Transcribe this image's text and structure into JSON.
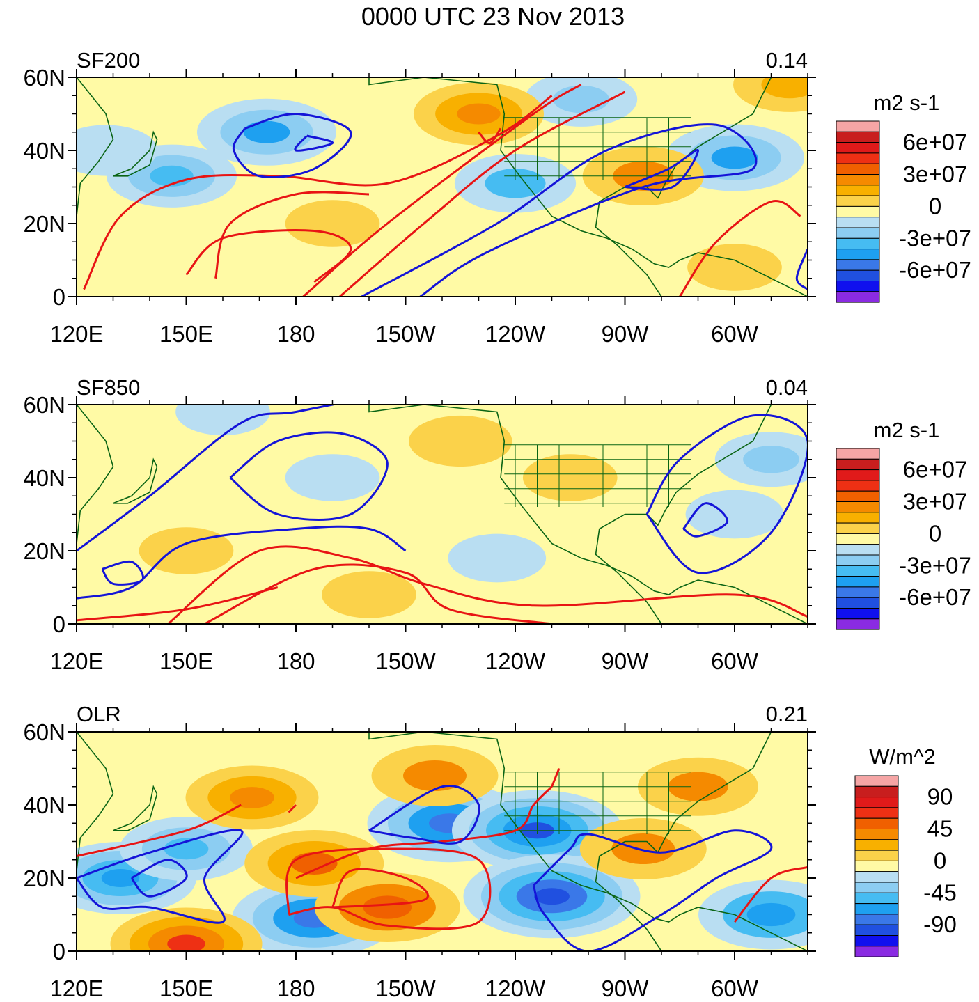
{
  "figure": {
    "title": "0000 UTC 23 Nov 2013"
  },
  "colors": {
    "positive_contour": "#e81414",
    "negative_contour": "#1414d8",
    "coastline": "#0a6414",
    "palette": [
      "#8a2be2",
      "#1010ee",
      "#2050e0",
      "#3a78e8",
      "#1ea0f0",
      "#46bcf2",
      "#8ccdf2",
      "#b9def2",
      "#fffaa5",
      "#fbd24a",
      "#f8b000",
      "#f58a00",
      "#f06000",
      "#ee3014",
      "#e01a1a",
      "#c81e1e",
      "#f5a5a5"
    ]
  },
  "chart_data": [
    {
      "type": "heatmap",
      "title": "SF200",
      "value_label": "0.14",
      "units": "m2 s-1",
      "x_ticks": [
        "120E",
        "150E",
        "180",
        "150W",
        "120W",
        "90W",
        "60W"
      ],
      "y_ticks": [
        "60N",
        "40N",
        "20N",
        "0"
      ],
      "lon_range": [
        120,
        320
      ],
      "lat_range": [
        0,
        60
      ],
      "colorbar_labels": [
        "6e+07",
        "3e+07",
        "0",
        "-3e+07",
        "-6e+07"
      ],
      "colorbar_levels": 16,
      "fields": [
        {
          "lon": 172,
          "lat": 45,
          "value": -35000000.0
        },
        {
          "lon": 146,
          "lat": 33,
          "value": -30000000.0
        },
        {
          "lon": 128,
          "lat": 40,
          "value": -15000000.0
        },
        {
          "lon": 240,
          "lat": 31,
          "value": -25000000.0
        },
        {
          "lon": 258,
          "lat": 54,
          "value": -20000000.0
        },
        {
          "lon": 300,
          "lat": 38,
          "value": -35000000.0
        },
        {
          "lon": 230,
          "lat": 50,
          "value": 30000000.0
        },
        {
          "lon": 275,
          "lat": 33,
          "value": 25000000.0
        },
        {
          "lon": 190,
          "lat": 20,
          "value": 10000000.0
        },
        {
          "lon": 315,
          "lat": 58,
          "value": 20000000.0
        },
        {
          "lon": 300,
          "lat": 8,
          "value": 10000000.0
        }
      ],
      "contours_positive": [
        [
          [
            122,
            2
          ],
          [
            132,
            22
          ],
          [
            150,
            32
          ],
          [
            175,
            33
          ],
          [
            205,
            31
          ],
          [
            235,
            44
          ],
          [
            250,
            55
          ]
        ],
        [
          [
            158,
            5
          ],
          [
            162,
            20
          ],
          [
            180,
            28
          ],
          [
            200,
            28
          ]
        ],
        [
          [
            150,
            6
          ],
          [
            160,
            16
          ],
          [
            185,
            18
          ],
          [
            195,
            13
          ],
          [
            185,
            4
          ]
        ],
        [
          [
            182,
            0
          ],
          [
            205,
            20
          ],
          [
            245,
            50
          ],
          [
            258,
            58
          ]
        ],
        [
          [
            192,
            0
          ],
          [
            215,
            20
          ],
          [
            240,
            40
          ],
          [
            270,
            56
          ]
        ],
        [
          [
            285,
            0
          ],
          [
            295,
            15
          ],
          [
            310,
            26
          ],
          [
            318,
            22
          ]
        ],
        [
          [
            230,
            45
          ],
          [
            233,
            42
          ],
          [
            236,
            46
          ]
        ]
      ],
      "contours_negative": [
        [
          [
            166,
            46
          ],
          [
            180,
            50
          ],
          [
            195,
            45
          ],
          [
            185,
            35
          ],
          [
            170,
            33
          ],
          [
            163,
            40
          ],
          [
            166,
            46
          ]
        ],
        [
          [
            183,
            44
          ],
          [
            190,
            42
          ],
          [
            180,
            40
          ],
          [
            183,
            44
          ]
        ],
        [
          [
            198,
            0
          ],
          [
            235,
            20
          ],
          [
            265,
            40
          ],
          [
            295,
            47
          ],
          [
            305,
            35
          ],
          [
            275,
            30
          ],
          [
            232,
            12
          ],
          [
            214,
            0
          ]
        ],
        [
          [
            270,
            30
          ],
          [
            282,
            35
          ],
          [
            290,
            40
          ],
          [
            283,
            30
          ],
          [
            270,
            30
          ]
        ],
        [
          [
            320,
            13
          ],
          [
            317,
            5
          ],
          [
            320,
            2
          ]
        ]
      ]
    },
    {
      "type": "heatmap",
      "title": "SF850",
      "value_label": "0.04",
      "units": "m2 s-1",
      "x_ticks": [
        "120E",
        "150E",
        "180",
        "150W",
        "120W",
        "90W",
        "60W"
      ],
      "y_ticks": [
        "60N",
        "40N",
        "20N",
        "0"
      ],
      "lon_range": [
        120,
        320
      ],
      "lat_range": [
        0,
        60
      ],
      "colorbar_labels": [
        "6e+07",
        "3e+07",
        "0",
        "-3e+07",
        "-6e+07"
      ],
      "colorbar_levels": 16,
      "fields": [
        {
          "lon": 190,
          "lat": 40,
          "value": -10000000.0
        },
        {
          "lon": 235,
          "lat": 18,
          "value": -12000000.0
        },
        {
          "lon": 300,
          "lat": 30,
          "value": -12000000.0
        },
        {
          "lon": 310,
          "lat": 45,
          "value": -20000000.0
        },
        {
          "lon": 160,
          "lat": 58,
          "value": -10000000.0
        },
        {
          "lon": 150,
          "lat": 20,
          "value": 10000000.0
        },
        {
          "lon": 200,
          "lat": 8,
          "value": 10000000.0
        },
        {
          "lon": 255,
          "lat": 40,
          "value": 10000000.0
        },
        {
          "lon": 225,
          "lat": 50,
          "value": 15000000.0
        }
      ],
      "contours_negative": [
        [
          [
            120,
            20
          ],
          [
            140,
            35
          ],
          [
            165,
            55
          ],
          [
            180,
            58
          ],
          [
            200,
            62
          ]
        ],
        [
          [
            162,
            40
          ],
          [
            175,
            50
          ],
          [
            193,
            52
          ],
          [
            205,
            44
          ],
          [
            195,
            30
          ],
          [
            175,
            30
          ],
          [
            162,
            40
          ]
        ],
        [
          [
            120,
            7
          ],
          [
            135,
            10
          ],
          [
            150,
            22
          ],
          [
            180,
            26
          ],
          [
            200,
            26
          ],
          [
            210,
            20
          ]
        ],
        [
          [
            127,
            15
          ],
          [
            135,
            17
          ],
          [
            138,
            12
          ],
          [
            130,
            11
          ],
          [
            127,
            15
          ]
        ],
        [
          [
            276,
            30
          ],
          [
            285,
            45
          ],
          [
            305,
            57
          ],
          [
            320,
            50
          ],
          [
            310,
            25
          ],
          [
            290,
            14
          ],
          [
            276,
            30
          ]
        ],
        [
          [
            286,
            26
          ],
          [
            292,
            33
          ],
          [
            298,
            28
          ],
          [
            290,
            24
          ],
          [
            286,
            26
          ]
        ]
      ],
      "contours_positive": [
        [
          [
            145,
            0
          ],
          [
            170,
            20
          ],
          [
            195,
            18
          ],
          [
            215,
            11
          ],
          [
            245,
            5
          ],
          [
            300,
            8
          ],
          [
            320,
            2
          ]
        ],
        [
          [
            155,
            0
          ],
          [
            185,
            15
          ],
          [
            210,
            14
          ],
          [
            222,
            4
          ],
          [
            250,
            0
          ]
        ],
        [
          [
            120,
            1
          ],
          [
            150,
            4
          ],
          [
            175,
            10
          ]
        ]
      ]
    },
    {
      "type": "heatmap",
      "title": "OLR",
      "value_label": "0.21",
      "units": "W/m^2",
      "x_ticks": [
        "120E",
        "150E",
        "180",
        "150W",
        "120W",
        "90W",
        "60W"
      ],
      "y_ticks": [
        "60N",
        "40N",
        "20N",
        "0"
      ],
      "lon_range": [
        120,
        320
      ],
      "lat_range": [
        0,
        60
      ],
      "colorbar_labels": [
        "90",
        "45",
        "0",
        "-45",
        "-90"
      ],
      "colorbar_levels": 16,
      "fields": [
        {
          "lon": 222,
          "lat": 35,
          "value": -70
        },
        {
          "lon": 246,
          "lat": 33,
          "value": -75
        },
        {
          "lon": 250,
          "lat": 15,
          "value": -80
        },
        {
          "lon": 185,
          "lat": 9,
          "value": -70
        },
        {
          "lon": 132,
          "lat": 20,
          "value": -60
        },
        {
          "lon": 150,
          "lat": 28,
          "value": -45
        },
        {
          "lon": 310,
          "lat": 10,
          "value": -55
        },
        {
          "lon": 185,
          "lat": 24,
          "value": 50
        },
        {
          "lon": 168,
          "lat": 42,
          "value": 45
        },
        {
          "lon": 205,
          "lat": 12,
          "value": 55
        },
        {
          "lon": 150,
          "lat": 2,
          "value": 60
        },
        {
          "lon": 275,
          "lat": 28,
          "value": 40
        },
        {
          "lon": 218,
          "lat": 48,
          "value": 40
        },
        {
          "lon": 290,
          "lat": 45,
          "value": 35
        }
      ],
      "contours_negative": [
        [
          [
            120,
            20
          ],
          [
            140,
            27
          ],
          [
            165,
            33
          ],
          [
            155,
            20
          ],
          [
            160,
            8
          ],
          [
            140,
            12
          ],
          [
            127,
            12
          ],
          [
            120,
            20
          ]
        ],
        [
          [
            135,
            20
          ],
          [
            145,
            25
          ],
          [
            150,
            20
          ],
          [
            140,
            15
          ],
          [
            135,
            20
          ]
        ],
        [
          [
            200,
            33
          ],
          [
            220,
            45
          ],
          [
            230,
            40
          ],
          [
            225,
            30
          ],
          [
            212,
            31
          ],
          [
            200,
            33
          ]
        ],
        [
          [
            245,
            18
          ],
          [
            255,
            28
          ],
          [
            260,
            32
          ],
          [
            280,
            27
          ],
          [
            300,
            33
          ],
          [
            310,
            28
          ],
          [
            295,
            20
          ],
          [
            280,
            10
          ],
          [
            260,
            0
          ],
          [
            248,
            10
          ],
          [
            245,
            18
          ]
        ]
      ],
      "contours_positive": [
        [
          [
            120,
            26
          ],
          [
            150,
            33
          ],
          [
            165,
            40
          ]
        ],
        [
          [
            178,
            38
          ],
          [
            180,
            40
          ]
        ],
        [
          [
            180,
            20
          ],
          [
            200,
            28
          ],
          [
            220,
            30
          ],
          [
            240,
            33
          ],
          [
            245,
            40
          ],
          [
            250,
            45
          ]
        ],
        [
          [
            178,
            10
          ],
          [
            180,
            25
          ],
          [
            205,
            28
          ],
          [
            230,
            25
          ],
          [
            230,
            8
          ],
          [
            205,
            7
          ],
          [
            190,
            12
          ],
          [
            178,
            10
          ]
        ],
        [
          [
            190,
            12
          ],
          [
            195,
            22
          ],
          [
            210,
            20
          ],
          [
            215,
            14
          ],
          [
            190,
            12
          ]
        ],
        [
          [
            300,
            8
          ],
          [
            310,
            20
          ],
          [
            320,
            23
          ]
        ],
        [
          [
            250,
            45
          ],
          [
            252,
            50
          ]
        ]
      ]
    }
  ]
}
